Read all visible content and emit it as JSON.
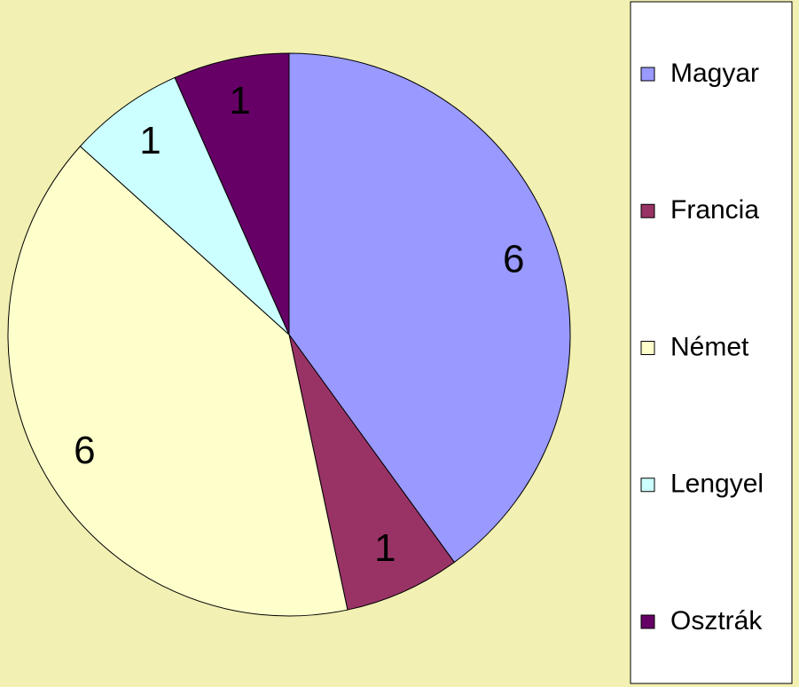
{
  "chart_data": {
    "type": "pie",
    "categories": [
      "Magyar",
      "Francia",
      "Német",
      "Lengyel",
      "Osztrák"
    ],
    "values": [
      6,
      1,
      6,
      1,
      1
    ],
    "colors": [
      "#9999ff",
      "#993366",
      "#ffffcc",
      "#ccffff",
      "#660066"
    ],
    "legend": "right"
  }
}
